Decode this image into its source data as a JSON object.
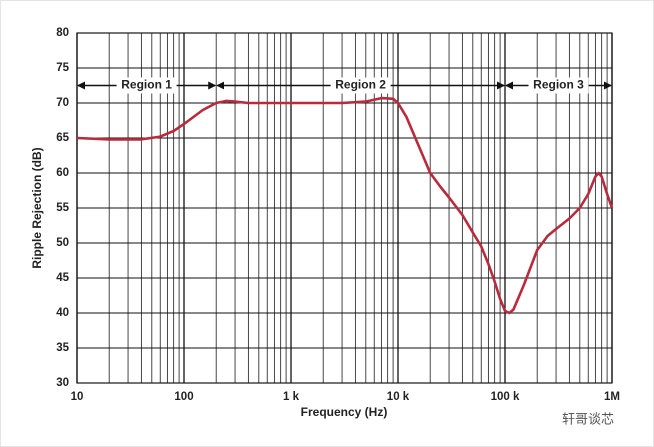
{
  "chart_data": {
    "type": "line",
    "xlabel": "Frequency (Hz)",
    "ylabel": "Ripple Rejection (dB)",
    "log_x": true,
    "grid": true,
    "xlim": [
      10,
      1000000
    ],
    "ylim": [
      30,
      80
    ],
    "xticks": [
      10,
      100,
      {
        "value": 1000,
        "label": "1 k"
      },
      {
        "value": 10000,
        "label": "10 k"
      },
      {
        "value": 100000,
        "label": "100 k"
      },
      {
        "value": 1000000,
        "label": "1M"
      }
    ],
    "xminorticks": [
      20,
      30,
      40,
      50,
      60,
      70,
      80,
      90,
      200,
      300,
      400,
      500,
      600,
      700,
      800,
      900,
      2000,
      3000,
      4000,
      5000,
      6000,
      7000,
      8000,
      9000,
      20000,
      30000,
      40000,
      50000,
      60000,
      70000,
      80000,
      90000,
      200000,
      300000,
      400000,
      500000,
      600000,
      700000,
      800000,
      900000
    ],
    "yticks": [
      30,
      35,
      40,
      45,
      50,
      55,
      60,
      65,
      70,
      75,
      80
    ],
    "x": [
      10,
      20,
      40,
      60,
      80,
      100,
      150,
      200,
      250,
      300,
      400,
      1000,
      3000,
      5000,
      7000,
      9000,
      10000,
      12000,
      15000,
      20000,
      25000,
      30000,
      40000,
      50000,
      60000,
      70000,
      80000,
      90000,
      100000,
      110000,
      120000,
      150000,
      200000,
      250000,
      300000,
      400000,
      500000,
      600000,
      700000,
      750000,
      800000,
      900000,
      1000000
    ],
    "series": [
      {
        "color": "#b82a3c",
        "values": [
          65,
          64.8,
          64.8,
          65.2,
          66,
          67,
          69,
          70,
          70.3,
          70.2,
          70,
          70,
          70,
          70.2,
          70.7,
          70.6,
          70,
          68,
          64.5,
          60,
          58,
          56.5,
          54,
          51.5,
          49.5,
          47,
          44.5,
          42,
          40.3,
          40,
          40.5,
          44,
          49,
          51,
          52,
          53.5,
          55,
          57,
          59.5,
          60,
          59.5,
          57,
          55
        ]
      }
    ],
    "regions": [
      {
        "label": "Region 1",
        "from": 10,
        "to": 200,
        "y": 72.5
      },
      {
        "label": "Region 2",
        "from": 200,
        "to": 100000,
        "y": 72.5
      },
      {
        "label": "Region 3",
        "from": 100000,
        "to": 1000000,
        "y": 72.5
      }
    ],
    "watermark": "轩哥谈芯"
  }
}
